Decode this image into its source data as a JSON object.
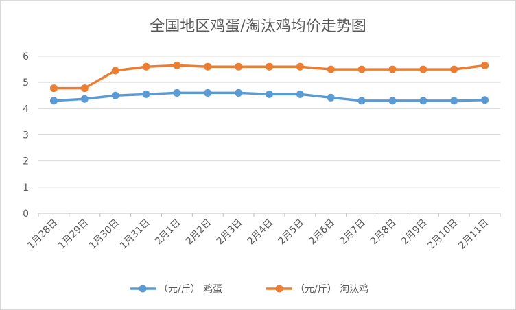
{
  "chart_data": {
    "type": "line",
    "title": "全国地区鸡蛋/淘汰鸡均价走势图",
    "categories": [
      "1月28日",
      "1月29日",
      "1月30日",
      "1月31日",
      "2月1日",
      "2月2日",
      "2月3日",
      "2月4日",
      "2月5日",
      "2月6日",
      "2月7日",
      "2月8日",
      "2月9日",
      "2月10日",
      "2月11日"
    ],
    "ylim": [
      0,
      6
    ],
    "yticks": [
      0,
      1,
      2,
      3,
      4,
      5,
      6
    ],
    "grid": true,
    "legend_position": "bottom",
    "series": [
      {
        "name": "（元/斤） 鸡蛋",
        "color": "#5b9bd5",
        "values": [
          4.3,
          4.37,
          4.5,
          4.55,
          4.6,
          4.6,
          4.6,
          4.55,
          4.55,
          4.42,
          4.3,
          4.3,
          4.3,
          4.3,
          4.33
        ]
      },
      {
        "name": "（元/斤） 淘汰鸡",
        "color": "#ed7d31",
        "values": [
          4.78,
          4.78,
          5.45,
          5.6,
          5.65,
          5.6,
          5.6,
          5.6,
          5.6,
          5.5,
          5.5,
          5.5,
          5.5,
          5.5,
          5.65
        ]
      }
    ]
  }
}
